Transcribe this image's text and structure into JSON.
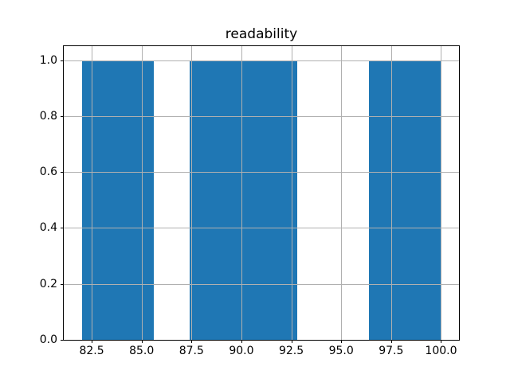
{
  "chart_data": {
    "type": "bar",
    "subtype": "histogram",
    "title": "readability",
    "bin_edges": [
      82.0,
      83.8,
      85.6,
      87.4,
      89.2,
      91.0,
      92.8,
      94.6,
      96.4,
      98.2,
      100.0
    ],
    "counts": [
      1,
      1,
      0,
      1,
      1,
      1,
      0,
      0,
      1,
      1
    ],
    "xticks": [
      82.5,
      85.0,
      87.5,
      90.0,
      92.5,
      95.0,
      97.5,
      100.0
    ],
    "xtick_labels": [
      "82.5",
      "85.0",
      "87.5",
      "90.0",
      "92.5",
      "95.0",
      "97.5",
      "100.0"
    ],
    "yticks": [
      0.0,
      0.2,
      0.4,
      0.6,
      0.8,
      1.0
    ],
    "ytick_labels": [
      "0.0",
      "0.2",
      "0.4",
      "0.6",
      "0.8",
      "1.0"
    ],
    "xlim": [
      81.1,
      100.9
    ],
    "ylim": [
      0,
      1.05
    ],
    "xlabel": "",
    "ylabel": "",
    "grid": true,
    "legend": null,
    "bar_color": "#1f77b4",
    "grid_color": "#b0b0b0",
    "spine_color": "#000000",
    "background_color": "#ffffff"
  }
}
